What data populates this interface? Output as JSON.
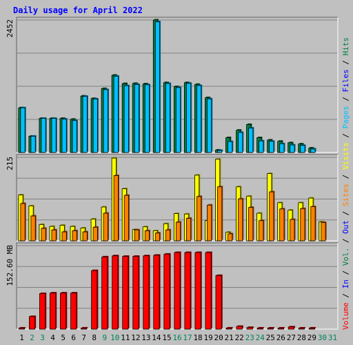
{
  "chart_data": {
    "type": "bar",
    "title": "Daily usage for April 2022",
    "x": [
      "1",
      "2",
      "3",
      "4",
      "5",
      "6",
      "7",
      "8",
      "9",
      "10",
      "11",
      "12",
      "13",
      "14",
      "15",
      "16",
      "17",
      "18",
      "19",
      "20",
      "21",
      "22",
      "23",
      "24",
      "25",
      "26",
      "27",
      "28",
      "29",
      "30",
      "31"
    ],
    "weekend_days": [
      "2",
      "3",
      "9",
      "10",
      "16",
      "17",
      "23",
      "24",
      "30",
      "31"
    ],
    "panels": [
      {
        "name": "top",
        "max_label": "2452",
        "ymax": 2452,
        "series": [
          {
            "name": "Hits",
            "color": "#008040",
            "values": [
              827,
              301,
              631,
              631,
              631,
              614,
              1045,
              999,
              1183,
              1430,
              1275,
              1278,
              1270,
              2452,
              1293,
              1218,
              1293,
              1260,
              1015,
              45,
              274,
              412,
              518,
              274,
              230,
              207,
              180,
              157,
              82,
              0,
              0
            ]
          },
          {
            "name": "Files",
            "color": "#00c0ff",
            "values": [
              827,
              301,
              631,
              631,
              617,
              591,
              1039,
              990,
              1163,
              1411,
              1236,
              1258,
              1253,
              2418,
              1276,
              1202,
              1279,
              1239,
              992,
              36,
              202,
              371,
              452,
              214,
              207,
              162,
              140,
              131,
              64,
              0,
              0
            ]
          }
        ]
      },
      {
        "name": "middle",
        "max_label": "215",
        "ymax": 215,
        "series": [
          {
            "name": "Visits",
            "color": "#ffff00",
            "values": [
              118,
              90,
              42,
              37,
              40,
              37,
              33,
              56,
              87,
              213,
              134,
              29,
              36,
              26,
              44,
              70,
              69,
              169,
              52,
              210,
              22,
              139,
              115,
              71,
              173,
              98,
              79,
              98,
              110,
              49,
              0
            ]
          },
          {
            "name": "Sites",
            "color": "#ff8000",
            "values": [
              96,
              64,
              32,
              28,
              23,
              26,
              23,
              35,
              71,
              168,
              117,
              28,
              26,
              20,
              28,
              48,
              58,
              114,
              92,
              139,
              18,
              108,
              86,
              52,
              126,
              82,
              55,
              83,
              88,
              47,
              0
            ]
          }
        ]
      },
      {
        "name": "bottom",
        "max_label": "152.60 MB",
        "ymax": 152.6,
        "series": [
          {
            "name": "Volume",
            "color": "#ff0000",
            "values": [
              2,
              23,
              65,
              66,
              66,
              66,
              2,
              107,
              132,
              134,
              133,
              133,
              134,
              135,
              137,
              140,
              140,
              140,
              140,
              98,
              2,
              5,
              3,
              2,
              2,
              2,
              4,
              2,
              2,
              0,
              0
            ]
          }
        ]
      }
    ],
    "right_legend": [
      {
        "text": "Volume",
        "color": "#ff0000"
      },
      {
        "text": "In",
        "color": "#0000ff"
      },
      {
        "text": "Vol.",
        "color": "#008040"
      },
      {
        "text": "Out",
        "color": "#0000ff"
      },
      {
        "text": "Sites",
        "color": "#ff8000"
      },
      {
        "text": "Visits",
        "color": "#ffff00"
      },
      {
        "text": "Pages",
        "color": "#00c0ff"
      },
      {
        "text": "Files",
        "color": "#0000ff"
      },
      {
        "text": "Hits",
        "color": "#008040"
      }
    ],
    "separator": " / ",
    "separator_color": "#000000",
    "colors": {
      "title": "#0000ff",
      "weekday": "#000000",
      "weekend": "#00805c",
      "background": "#c0c0c0",
      "plot_background": "#c0c0c0",
      "gridline": "#808080"
    }
  }
}
